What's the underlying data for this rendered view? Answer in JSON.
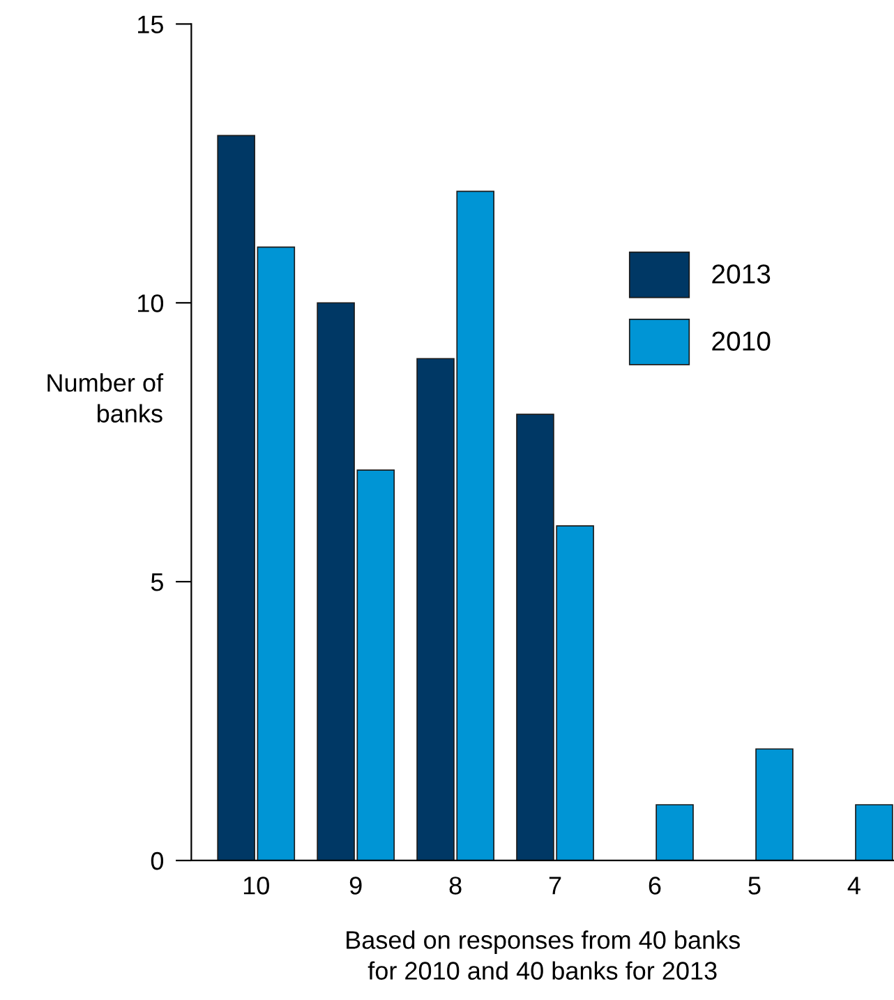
{
  "chart_data": {
    "type": "bar",
    "xlabel": "Based on responses from 40 banks\nfor 2010 and 40 banks for 2013",
    "ylabel": "Number of\nbanks",
    "categories": [
      "10",
      "9",
      "8",
      "7",
      "6",
      "5",
      "4"
    ],
    "series": [
      {
        "name": "2013",
        "color": "#003865",
        "values": [
          13,
          10,
          9,
          8,
          0,
          0,
          0
        ]
      },
      {
        "name": "2010",
        "color": "#0095d5",
        "values": [
          11,
          7,
          12,
          6,
          1,
          2,
          1
        ]
      }
    ],
    "ylim": [
      0,
      15
    ],
    "yticks": [
      0,
      5,
      10,
      15
    ],
    "grid": false,
    "legend": "right"
  }
}
